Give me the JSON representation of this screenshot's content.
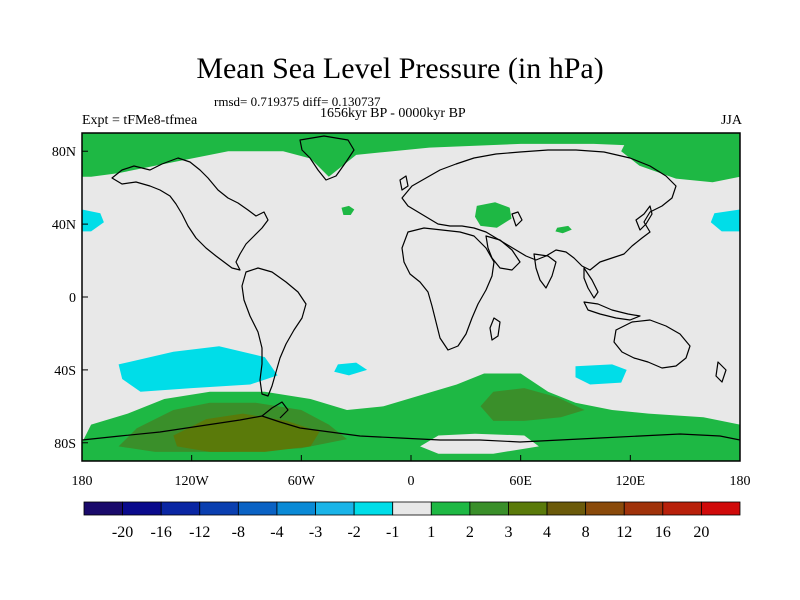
{
  "header": {
    "title": "Mean Sea Level Pressure (in hPa)",
    "stats": "rmsd= 0.719375 diff= 0.130737",
    "experiment": "Expt = tFMe8-tfmea",
    "period": "1656kyr BP - 0000kyr BP",
    "season": "JJA"
  },
  "chart_data": {
    "type": "heatmap",
    "title": "Mean Sea Level Pressure (in hPa)",
    "subtitle": "1656kyr BP - 0000kyr BP",
    "xlabel": "",
    "ylabel": "",
    "xlim": [
      -180,
      180
    ],
    "ylim": [
      -90,
      90
    ],
    "x_ticks": [
      {
        "value": -180,
        "label": "180"
      },
      {
        "value": -120,
        "label": "120W"
      },
      {
        "value": -60,
        "label": "60W"
      },
      {
        "value": 0,
        "label": "0"
      },
      {
        "value": 60,
        "label": "60E"
      },
      {
        "value": 120,
        "label": "120E"
      },
      {
        "value": 180,
        "label": "180"
      }
    ],
    "y_ticks": [
      {
        "value": 80,
        "label": "80N"
      },
      {
        "value": 40,
        "label": "40N"
      },
      {
        "value": 0,
        "label": "0"
      },
      {
        "value": -40,
        "label": "40S"
      },
      {
        "value": -80,
        "label": "80S"
      }
    ],
    "colorbar": {
      "colors": [
        "#1a0a6b",
        "#0a0a8c",
        "#0a26a3",
        "#0a3fb0",
        "#0a62c4",
        "#0a8ad6",
        "#1ab4e8",
        "#00dde8",
        "#e8e8e8",
        "#1eb844",
        "#3a8f2a",
        "#5a7a0a",
        "#6b5a0a",
        "#8a4a0a",
        "#a0320a",
        "#b8200a",
        "#d00a0a"
      ],
      "labels": [
        "-20",
        "-16",
        "-12",
        "-8",
        "-4",
        "-3",
        "-2",
        "-1",
        "1",
        "2",
        "3",
        "4",
        "8",
        "12",
        "16",
        "20"
      ]
    },
    "regions": [
      {
        "name": "arctic-canada-greenland",
        "level": "1-2",
        "points": [
          [
            -180,
            90
          ],
          [
            180,
            90
          ],
          [
            180,
            80
          ],
          [
            150,
            82
          ],
          [
            100,
            84
          ],
          [
            60,
            84
          ],
          [
            10,
            82
          ],
          [
            -10,
            80
          ],
          [
            -30,
            78
          ],
          [
            -45,
            66
          ],
          [
            -55,
            76
          ],
          [
            -70,
            80
          ],
          [
            -100,
            80
          ],
          [
            -120,
            76
          ],
          [
            -140,
            72
          ],
          [
            -160,
            68
          ],
          [
            -175,
            66
          ],
          [
            -180,
            66
          ]
        ]
      },
      {
        "name": "north-pacific-east-anomaly",
        "level": "1-2",
        "points": [
          [
            120,
            90
          ],
          [
            180,
            90
          ],
          [
            180,
            66
          ],
          [
            165,
            63
          ],
          [
            145,
            65
          ],
          [
            125,
            72
          ],
          [
            115,
            80
          ]
        ]
      },
      {
        "name": "north-atlantic-blob",
        "level": "1-2",
        "points": [
          [
            -38,
            49
          ],
          [
            -34,
            50
          ],
          [
            -31,
            48
          ],
          [
            -33,
            45
          ],
          [
            -37,
            45
          ]
        ]
      },
      {
        "name": "caspian-blob",
        "level": "1-2",
        "points": [
          [
            36,
            50
          ],
          [
            46,
            52
          ],
          [
            54,
            49
          ],
          [
            55,
            43
          ],
          [
            47,
            38
          ],
          [
            38,
            39
          ],
          [
            35,
            44
          ]
        ]
      },
      {
        "name": "tibet-blob",
        "level": "1-2",
        "points": [
          [
            80,
            38
          ],
          [
            86,
            39
          ],
          [
            88,
            37
          ],
          [
            83,
            35
          ],
          [
            79,
            36
          ]
        ]
      },
      {
        "name": "east-pacific-blue-left",
        "level": "-1--2",
        "points": [
          [
            -180,
            48
          ],
          [
            -170,
            46
          ],
          [
            -168,
            41
          ],
          [
            -175,
            36
          ],
          [
            -180,
            36
          ]
        ]
      },
      {
        "name": "east-pacific-blue-right",
        "level": "-1--2",
        "points": [
          [
            166,
            46
          ],
          [
            180,
            48
          ],
          [
            180,
            36
          ],
          [
            170,
            36
          ],
          [
            164,
            41
          ]
        ]
      },
      {
        "name": "south-pacific-blue",
        "level": "-1--2",
        "points": [
          [
            -160,
            -37
          ],
          [
            -130,
            -30
          ],
          [
            -105,
            -27
          ],
          [
            -80,
            -33
          ],
          [
            -73,
            -43
          ],
          [
            -88,
            -48
          ],
          [
            -120,
            -50
          ],
          [
            -148,
            -52
          ],
          [
            -158,
            -45
          ]
        ]
      },
      {
        "name": "south-atlantic-blue",
        "level": "-1--2",
        "points": [
          [
            -40,
            -37
          ],
          [
            -30,
            -36
          ],
          [
            -24,
            -40
          ],
          [
            -34,
            -43
          ],
          [
            -42,
            -41
          ]
        ]
      },
      {
        "name": "indian-ocean-blue",
        "level": "-1--2",
        "points": [
          [
            90,
            -38
          ],
          [
            110,
            -37
          ],
          [
            118,
            -40
          ],
          [
            115,
            -47
          ],
          [
            98,
            -48
          ],
          [
            90,
            -44
          ]
        ]
      },
      {
        "name": "southern-ocean-green",
        "level": "1-2",
        "points": [
          [
            -180,
            -80
          ],
          [
            -175,
            -70
          ],
          [
            -155,
            -64
          ],
          [
            -135,
            -56
          ],
          [
            -110,
            -52
          ],
          [
            -80,
            -52
          ],
          [
            -55,
            -56
          ],
          [
            -35,
            -62
          ],
          [
            -15,
            -60
          ],
          [
            5,
            -54
          ],
          [
            25,
            -48
          ],
          [
            40,
            -42
          ],
          [
            60,
            -42
          ],
          [
            75,
            -52
          ],
          [
            90,
            -58
          ],
          [
            110,
            -62
          ],
          [
            130,
            -64
          ],
          [
            160,
            -66
          ],
          [
            180,
            -70
          ],
          [
            180,
            -90
          ],
          [
            -180,
            -90
          ]
        ]
      },
      {
        "name": "antarctica-dark-green",
        "level": "2-3",
        "points": [
          [
            -160,
            -82
          ],
          [
            -150,
            -72
          ],
          [
            -130,
            -62
          ],
          [
            -110,
            -58
          ],
          [
            -85,
            -58
          ],
          [
            -60,
            -62
          ],
          [
            -45,
            -70
          ],
          [
            -35,
            -78
          ],
          [
            -60,
            -83
          ],
          [
            -100,
            -85
          ],
          [
            -140,
            -85
          ]
        ]
      },
      {
        "name": "east-antarctic-dark-green",
        "level": "2-3",
        "points": [
          [
            38,
            -60
          ],
          [
            45,
            -52
          ],
          [
            62,
            -50
          ],
          [
            80,
            -55
          ],
          [
            95,
            -62
          ],
          [
            82,
            -66
          ],
          [
            62,
            -68
          ],
          [
            45,
            -68
          ]
        ]
      },
      {
        "name": "antarctica-brown",
        "level": "3-4",
        "points": [
          [
            -130,
            -76
          ],
          [
            -112,
            -67
          ],
          [
            -92,
            -64
          ],
          [
            -68,
            -68
          ],
          [
            -50,
            -74
          ],
          [
            -55,
            -82
          ],
          [
            -80,
            -85
          ],
          [
            -110,
            -85
          ],
          [
            -128,
            -82
          ]
        ]
      },
      {
        "name": "antarctica-white-hole",
        "level": "-1-1",
        "points": [
          [
            5,
            -82
          ],
          [
            15,
            -76
          ],
          [
            35,
            -75
          ],
          [
            62,
            -76
          ],
          [
            70,
            -82
          ],
          [
            45,
            -86
          ],
          [
            15,
            -86
          ]
        ]
      }
    ]
  }
}
